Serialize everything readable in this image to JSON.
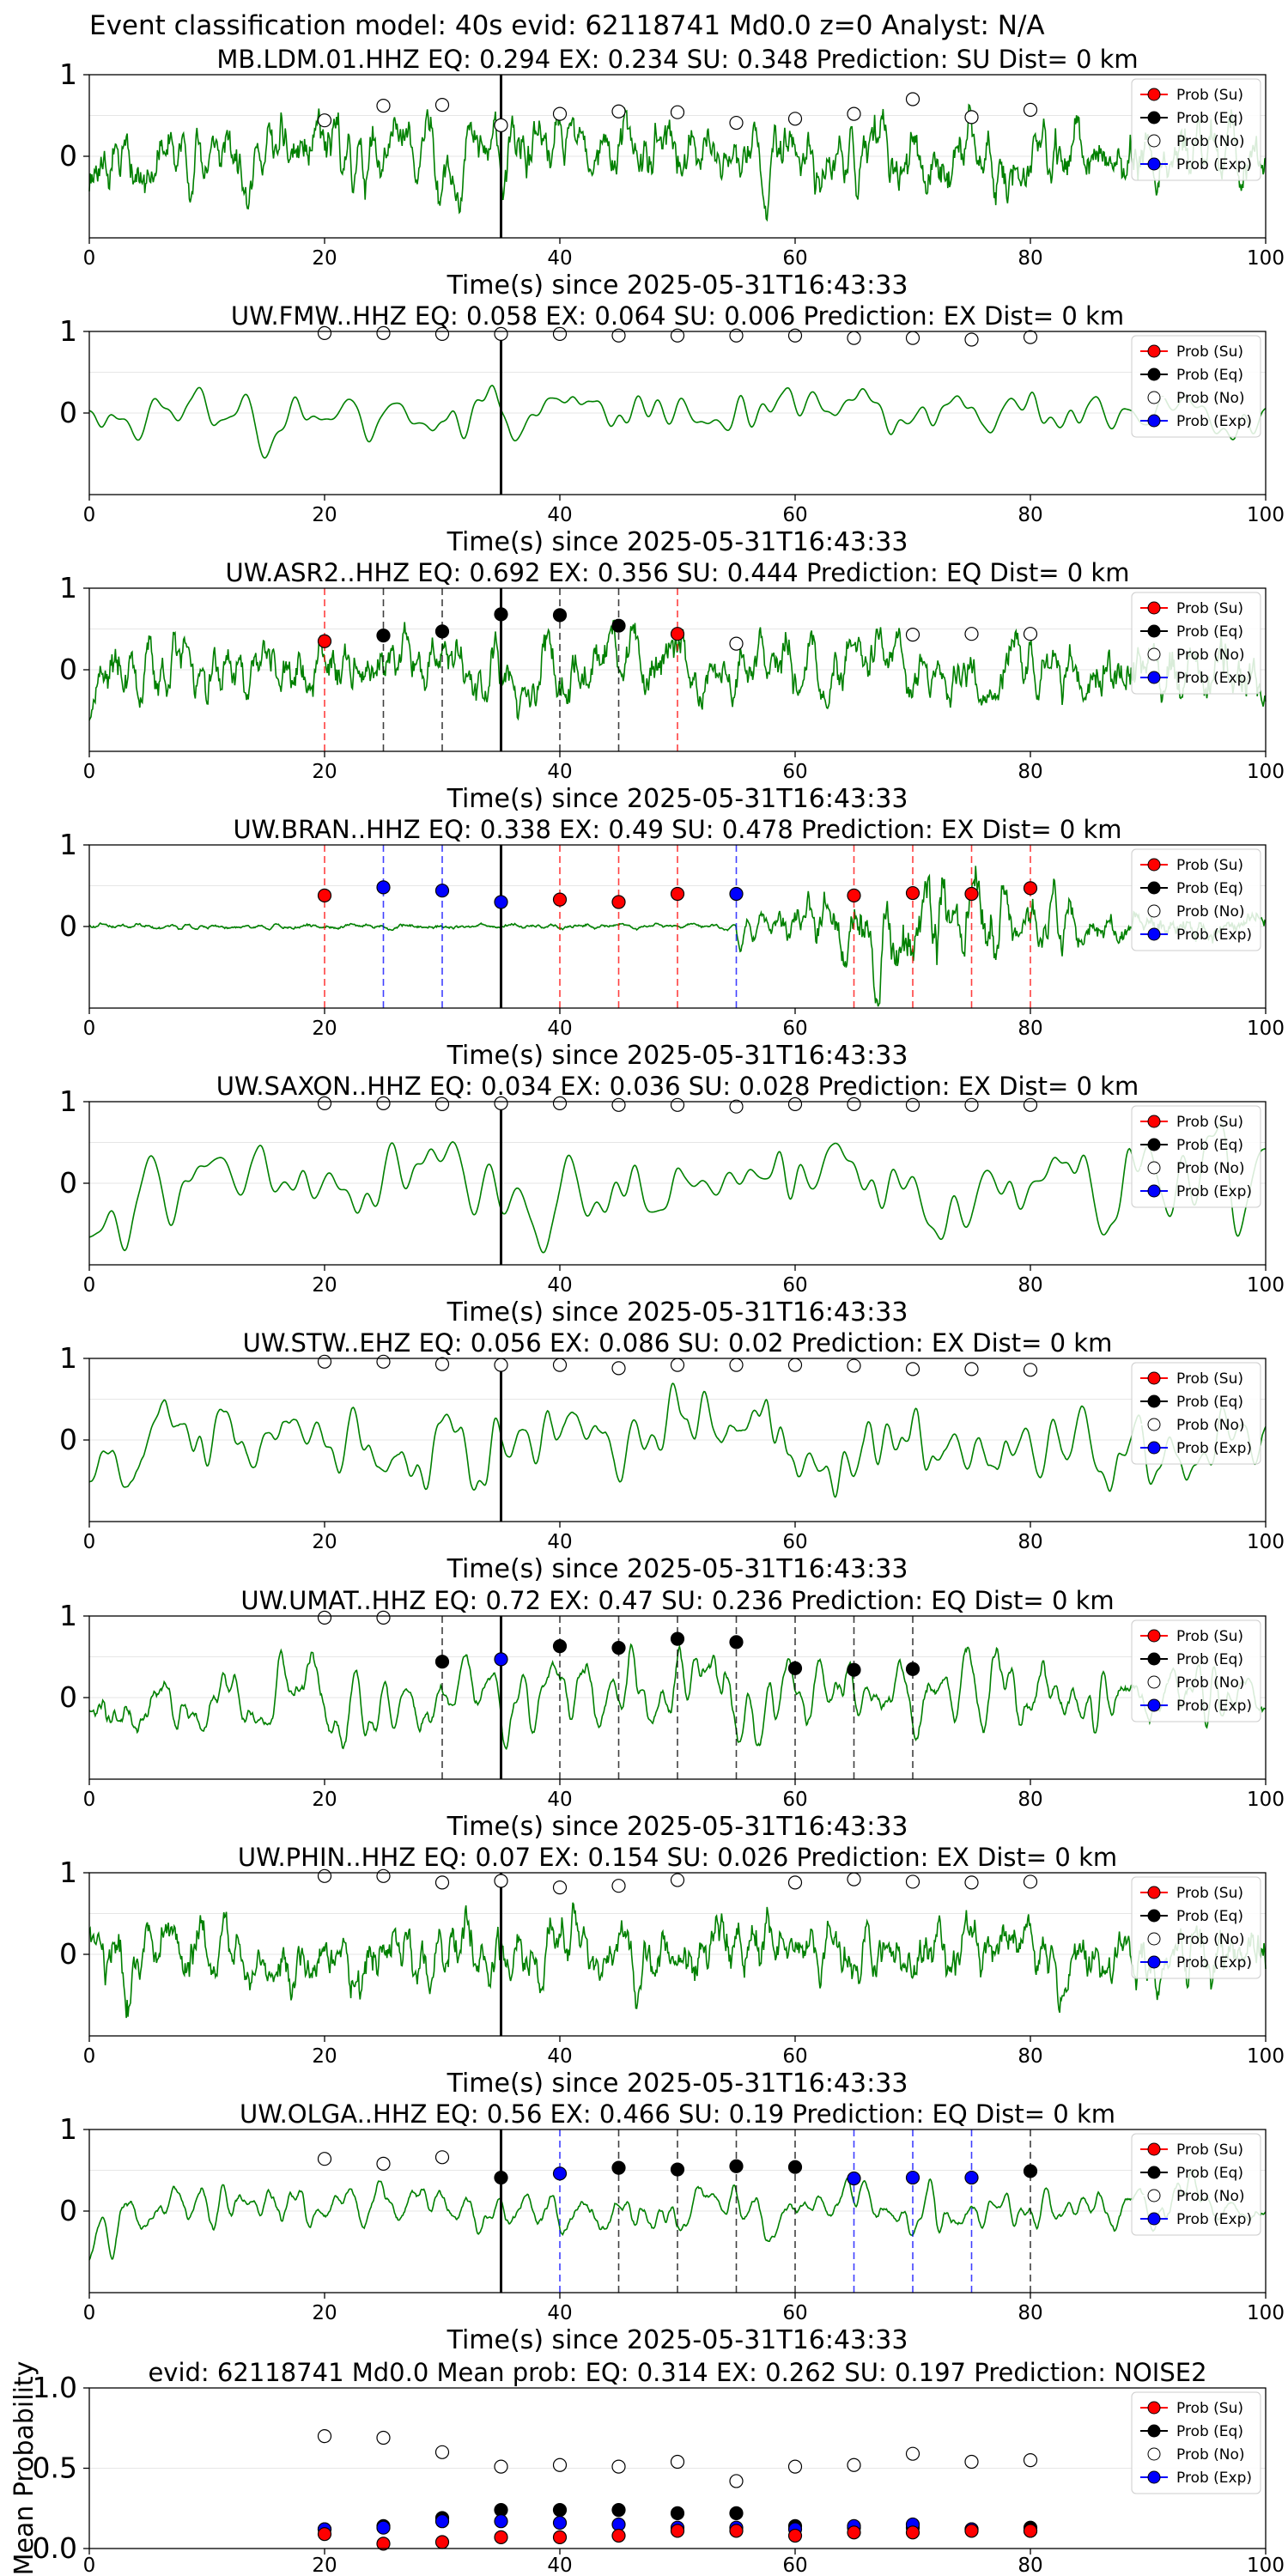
{
  "figure": {
    "suptitle": "Event classification model: 40s evid: 62118741 Md0.0 z=0 Analyst: N/A"
  },
  "colors": {
    "waveform": "#008000",
    "su": "#ff0000",
    "eq": "#000000",
    "no": "#ffffff",
    "exp": "#0000ff",
    "origin_line": "#000000"
  },
  "legend_labels": [
    "Prob (Su)",
    "Prob (Eq)",
    "Prob (No)",
    "Prob (Exp)"
  ],
  "chart_data": [
    {
      "type": "line",
      "title": "MB.LDM.01.HHZ   EQ: 0.294  EX: 0.234  SU: 0.348   Prediction: SU    Dist= 0 km",
      "xlabel": "Time(s) since 2025-05-31T16:43:33",
      "xlim": [
        0,
        100
      ],
      "ylim": [
        -1,
        1
      ],
      "xticks": [
        "0",
        "20",
        "40",
        "60",
        "80",
        "100"
      ],
      "yticks": [
        "1",
        "0"
      ],
      "origin_line_x": 35,
      "waveform": {
        "amplitude": 0.78,
        "smooth": 1,
        "seed": 11
      },
      "legend_position": "top-right",
      "points": [
        {
          "x": 20,
          "y": 0.44,
          "cls": "no"
        },
        {
          "x": 25,
          "y": 0.62,
          "cls": "no"
        },
        {
          "x": 30,
          "y": 0.63,
          "cls": "no"
        },
        {
          "x": 35,
          "y": 0.38,
          "cls": "no"
        },
        {
          "x": 40,
          "y": 0.52,
          "cls": "no"
        },
        {
          "x": 45,
          "y": 0.55,
          "cls": "no"
        },
        {
          "x": 50,
          "y": 0.54,
          "cls": "no"
        },
        {
          "x": 55,
          "y": 0.41,
          "cls": "no"
        },
        {
          "x": 60,
          "y": 0.46,
          "cls": "no"
        },
        {
          "x": 65,
          "y": 0.52,
          "cls": "no"
        },
        {
          "x": 70,
          "y": 0.7,
          "cls": "no"
        },
        {
          "x": 75,
          "y": 0.48,
          "cls": "no"
        },
        {
          "x": 80,
          "y": 0.57,
          "cls": "no"
        }
      ],
      "markers": []
    },
    {
      "type": "line",
      "title": "UW.FMW..HHZ   EQ: 0.058  EX: 0.064  SU: 0.006   Prediction: EX    Dist= 0 km",
      "xlabel": "Time(s) since 2025-05-31T16:43:33",
      "xlim": [
        0,
        100
      ],
      "ylim": [
        -1,
        1
      ],
      "xticks": [
        "0",
        "20",
        "40",
        "60",
        "80",
        "100"
      ],
      "yticks": [
        "1",
        "0"
      ],
      "origin_line_x": 35,
      "waveform": {
        "amplitude": 0.55,
        "smooth": 5,
        "seed": 23
      },
      "legend_position": "top-right",
      "points": [
        {
          "x": 20,
          "y": 0.98,
          "cls": "no"
        },
        {
          "x": 25,
          "y": 0.98,
          "cls": "no"
        },
        {
          "x": 30,
          "y": 0.97,
          "cls": "no"
        },
        {
          "x": 35,
          "y": 0.97,
          "cls": "no"
        },
        {
          "x": 40,
          "y": 0.97,
          "cls": "no"
        },
        {
          "x": 45,
          "y": 0.95,
          "cls": "no"
        },
        {
          "x": 50,
          "y": 0.95,
          "cls": "no"
        },
        {
          "x": 55,
          "y": 0.95,
          "cls": "no"
        },
        {
          "x": 60,
          "y": 0.95,
          "cls": "no"
        },
        {
          "x": 65,
          "y": 0.92,
          "cls": "no"
        },
        {
          "x": 70,
          "y": 0.92,
          "cls": "no"
        },
        {
          "x": 75,
          "y": 0.9,
          "cls": "no"
        },
        {
          "x": 80,
          "y": 0.93,
          "cls": "no"
        }
      ],
      "markers": []
    },
    {
      "type": "line",
      "title": "UW.ASR2..HHZ   EQ: 0.692  EX: 0.356  SU: 0.444   Prediction: EQ    Dist= 0 km",
      "xlabel": "Time(s) since 2025-05-31T16:43:33",
      "xlim": [
        0,
        100
      ],
      "ylim": [
        -1,
        1
      ],
      "xticks": [
        "0",
        "20",
        "40",
        "60",
        "80",
        "100"
      ],
      "yticks": [
        "1",
        "0"
      ],
      "origin_line_x": 35,
      "waveform": {
        "amplitude": 0.62,
        "smooth": 1,
        "seed": 37
      },
      "legend_position": "top-right",
      "points": [
        {
          "x": 20,
          "y": 0.35,
          "cls": "su"
        },
        {
          "x": 25,
          "y": 0.42,
          "cls": "eq"
        },
        {
          "x": 30,
          "y": 0.47,
          "cls": "eq"
        },
        {
          "x": 35,
          "y": 0.68,
          "cls": "eq"
        },
        {
          "x": 40,
          "y": 0.67,
          "cls": "eq"
        },
        {
          "x": 45,
          "y": 0.54,
          "cls": "eq"
        },
        {
          "x": 50,
          "y": 0.44,
          "cls": "su"
        },
        {
          "x": 55,
          "y": 0.32,
          "cls": "no"
        },
        {
          "x": 70,
          "y": 0.43,
          "cls": "no"
        },
        {
          "x": 75,
          "y": 0.44,
          "cls": "no"
        },
        {
          "x": 80,
          "y": 0.44,
          "cls": "no"
        }
      ],
      "markers": [
        {
          "x": 20,
          "cls": "su"
        },
        {
          "x": 25,
          "cls": "eq"
        },
        {
          "x": 30,
          "cls": "eq"
        },
        {
          "x": 40,
          "cls": "eq"
        },
        {
          "x": 45,
          "cls": "eq"
        },
        {
          "x": 50,
          "cls": "su"
        }
      ]
    },
    {
      "type": "line",
      "title": "UW.BRAN..HHZ   EQ: 0.338  EX: 0.49  SU: 0.478   Prediction: EX    Dist= 0 km",
      "xlabel": "Time(s) since 2025-05-31T16:43:33",
      "xlim": [
        0,
        100
      ],
      "ylim": [
        -1,
        1
      ],
      "xticks": [
        "0",
        "20",
        "40",
        "60",
        "80",
        "100"
      ],
      "yticks": [
        "1",
        "0"
      ],
      "origin_line_x": 35,
      "waveform": {
        "amplitude": 0.06,
        "smooth": 1,
        "seed": 41,
        "burst": true
      },
      "legend_position": "top-right",
      "points": [
        {
          "x": 20,
          "y": 0.38,
          "cls": "su"
        },
        {
          "x": 25,
          "y": 0.48,
          "cls": "exp"
        },
        {
          "x": 30,
          "y": 0.44,
          "cls": "exp"
        },
        {
          "x": 35,
          "y": 0.3,
          "cls": "exp"
        },
        {
          "x": 40,
          "y": 0.33,
          "cls": "su"
        },
        {
          "x": 45,
          "y": 0.3,
          "cls": "su"
        },
        {
          "x": 50,
          "y": 0.4,
          "cls": "su"
        },
        {
          "x": 55,
          "y": 0.4,
          "cls": "exp"
        },
        {
          "x": 65,
          "y": 0.38,
          "cls": "su"
        },
        {
          "x": 70,
          "y": 0.41,
          "cls": "su"
        },
        {
          "x": 75,
          "y": 0.4,
          "cls": "su"
        },
        {
          "x": 80,
          "y": 0.47,
          "cls": "su"
        }
      ],
      "markers": [
        {
          "x": 20,
          "cls": "su"
        },
        {
          "x": 25,
          "cls": "exp"
        },
        {
          "x": 30,
          "cls": "exp"
        },
        {
          "x": 40,
          "cls": "su"
        },
        {
          "x": 45,
          "cls": "su"
        },
        {
          "x": 50,
          "cls": "su"
        },
        {
          "x": 55,
          "cls": "exp"
        },
        {
          "x": 65,
          "cls": "su"
        },
        {
          "x": 70,
          "cls": "su"
        },
        {
          "x": 75,
          "cls": "su"
        },
        {
          "x": 80,
          "cls": "su"
        }
      ]
    },
    {
      "type": "line",
      "title": "UW.SAXON..HHZ   EQ: 0.034  EX: 0.036  SU: 0.028   Prediction: EX    Dist= 0 km",
      "xlabel": "Time(s) since 2025-05-31T16:43:33",
      "xlim": [
        0,
        100
      ],
      "ylim": [
        -1,
        1
      ],
      "xticks": [
        "0",
        "20",
        "40",
        "60",
        "80",
        "100"
      ],
      "yticks": [
        "1",
        "0"
      ],
      "origin_line_x": 35,
      "waveform": {
        "amplitude": 0.85,
        "smooth": 6,
        "seed": 53
      },
      "legend_position": "top-right",
      "points": [
        {
          "x": 20,
          "y": 0.98,
          "cls": "no"
        },
        {
          "x": 25,
          "y": 0.98,
          "cls": "no"
        },
        {
          "x": 30,
          "y": 0.97,
          "cls": "no"
        },
        {
          "x": 35,
          "y": 0.98,
          "cls": "no"
        },
        {
          "x": 40,
          "y": 0.98,
          "cls": "no"
        },
        {
          "x": 45,
          "y": 0.96,
          "cls": "no"
        },
        {
          "x": 50,
          "y": 0.96,
          "cls": "no"
        },
        {
          "x": 55,
          "y": 0.94,
          "cls": "no"
        },
        {
          "x": 60,
          "y": 0.97,
          "cls": "no"
        },
        {
          "x": 65,
          "y": 0.97,
          "cls": "no"
        },
        {
          "x": 70,
          "y": 0.96,
          "cls": "no"
        },
        {
          "x": 75,
          "y": 0.96,
          "cls": "no"
        },
        {
          "x": 80,
          "y": 0.96,
          "cls": "no"
        }
      ],
      "markers": []
    },
    {
      "type": "line",
      "title": "UW.STW..EHZ   EQ: 0.056  EX: 0.086  SU: 0.02   Prediction: EX    Dist= 0 km",
      "xlabel": "Time(s) since 2025-05-31T16:43:33",
      "xlim": [
        0,
        100
      ],
      "ylim": [
        -1,
        1
      ],
      "xticks": [
        "0",
        "20",
        "40",
        "60",
        "80",
        "100"
      ],
      "yticks": [
        "1",
        "0"
      ],
      "origin_line_x": 35,
      "waveform": {
        "amplitude": 0.7,
        "smooth": 3,
        "seed": 67
      },
      "legend_position": "top-right",
      "points": [
        {
          "x": 20,
          "y": 0.96,
          "cls": "no"
        },
        {
          "x": 25,
          "y": 0.96,
          "cls": "no"
        },
        {
          "x": 30,
          "y": 0.93,
          "cls": "no"
        },
        {
          "x": 35,
          "y": 0.92,
          "cls": "no"
        },
        {
          "x": 40,
          "y": 0.92,
          "cls": "no"
        },
        {
          "x": 45,
          "y": 0.88,
          "cls": "no"
        },
        {
          "x": 50,
          "y": 0.92,
          "cls": "no"
        },
        {
          "x": 55,
          "y": 0.92,
          "cls": "no"
        },
        {
          "x": 60,
          "y": 0.92,
          "cls": "no"
        },
        {
          "x": 65,
          "y": 0.91,
          "cls": "no"
        },
        {
          "x": 70,
          "y": 0.87,
          "cls": "no"
        },
        {
          "x": 75,
          "y": 0.87,
          "cls": "no"
        },
        {
          "x": 80,
          "y": 0.86,
          "cls": "no"
        }
      ],
      "markers": []
    },
    {
      "type": "line",
      "title": "UW.UMAT..HHZ   EQ: 0.72  EX: 0.47  SU: 0.236   Prediction: EQ    Dist= 0 km",
      "xlabel": "Time(s) since 2025-05-31T16:43:33",
      "xlim": [
        0,
        100
      ],
      "ylim": [
        -1,
        1
      ],
      "xticks": [
        "0",
        "20",
        "40",
        "60",
        "80",
        "100"
      ],
      "yticks": [
        "1",
        "0"
      ],
      "origin_line_x": 35,
      "waveform": {
        "amplitude": 0.65,
        "smooth": 2,
        "seed": 79
      },
      "legend_position": "top-right",
      "points": [
        {
          "x": 20,
          "y": 0.98,
          "cls": "no"
        },
        {
          "x": 25,
          "y": 0.98,
          "cls": "no"
        },
        {
          "x": 30,
          "y": 0.44,
          "cls": "eq"
        },
        {
          "x": 35,
          "y": 0.47,
          "cls": "exp"
        },
        {
          "x": 40,
          "y": 0.63,
          "cls": "eq"
        },
        {
          "x": 45,
          "y": 0.61,
          "cls": "eq"
        },
        {
          "x": 50,
          "y": 0.72,
          "cls": "eq"
        },
        {
          "x": 55,
          "y": 0.68,
          "cls": "eq"
        },
        {
          "x": 60,
          "y": 0.36,
          "cls": "eq"
        },
        {
          "x": 65,
          "y": 0.34,
          "cls": "eq"
        },
        {
          "x": 70,
          "y": 0.35,
          "cls": "eq"
        }
      ],
      "markers": [
        {
          "x": 30,
          "cls": "eq"
        },
        {
          "x": 40,
          "cls": "eq"
        },
        {
          "x": 45,
          "cls": "eq"
        },
        {
          "x": 50,
          "cls": "eq"
        },
        {
          "x": 55,
          "cls": "eq"
        },
        {
          "x": 60,
          "cls": "eq"
        },
        {
          "x": 65,
          "cls": "eq"
        },
        {
          "x": 70,
          "cls": "eq"
        }
      ]
    },
    {
      "type": "line",
      "title": "UW.PHIN..HHZ   EQ: 0.07  EX: 0.154  SU: 0.026   Prediction: EX    Dist= 0 km",
      "xlabel": "Time(s) since 2025-05-31T16:43:33",
      "xlim": [
        0,
        100
      ],
      "ylim": [
        -1,
        1
      ],
      "xticks": [
        "0",
        "20",
        "40",
        "60",
        "80",
        "100"
      ],
      "yticks": [
        "1",
        "0"
      ],
      "origin_line_x": 35,
      "waveform": {
        "amplitude": 0.78,
        "smooth": 1,
        "seed": 83
      },
      "legend_position": "top-right",
      "points": [
        {
          "x": 20,
          "y": 0.96,
          "cls": "no"
        },
        {
          "x": 25,
          "y": 0.96,
          "cls": "no"
        },
        {
          "x": 30,
          "y": 0.88,
          "cls": "no"
        },
        {
          "x": 35,
          "y": 0.9,
          "cls": "no"
        },
        {
          "x": 40,
          "y": 0.82,
          "cls": "no"
        },
        {
          "x": 45,
          "y": 0.84,
          "cls": "no"
        },
        {
          "x": 50,
          "y": 0.91,
          "cls": "no"
        },
        {
          "x": 60,
          "y": 0.88,
          "cls": "no"
        },
        {
          "x": 65,
          "y": 0.92,
          "cls": "no"
        },
        {
          "x": 70,
          "y": 0.89,
          "cls": "no"
        },
        {
          "x": 75,
          "y": 0.88,
          "cls": "no"
        },
        {
          "x": 80,
          "y": 0.89,
          "cls": "no"
        }
      ],
      "markers": []
    },
    {
      "type": "line",
      "title": "UW.OLGA..HHZ   EQ: 0.56  EX: 0.466  SU: 0.19   Prediction: EQ    Dist= 0 km",
      "xlabel": "Time(s) since 2025-05-31T16:43:33",
      "xlim": [
        0,
        100
      ],
      "ylim": [
        -1,
        1
      ],
      "xticks": [
        "0",
        "20",
        "40",
        "60",
        "80",
        "100"
      ],
      "yticks": [
        "1",
        "0"
      ],
      "origin_line_x": 35,
      "waveform": {
        "amplitude": 0.6,
        "smooth": 2,
        "seed": 97
      },
      "legend_position": "top-right",
      "points": [
        {
          "x": 20,
          "y": 0.64,
          "cls": "no"
        },
        {
          "x": 25,
          "y": 0.58,
          "cls": "no"
        },
        {
          "x": 30,
          "y": 0.66,
          "cls": "no"
        },
        {
          "x": 35,
          "y": 0.41,
          "cls": "eq"
        },
        {
          "x": 40,
          "y": 0.46,
          "cls": "exp"
        },
        {
          "x": 45,
          "y": 0.53,
          "cls": "eq"
        },
        {
          "x": 50,
          "y": 0.51,
          "cls": "eq"
        },
        {
          "x": 55,
          "y": 0.55,
          "cls": "eq"
        },
        {
          "x": 60,
          "y": 0.54,
          "cls": "eq"
        },
        {
          "x": 65,
          "y": 0.4,
          "cls": "exp"
        },
        {
          "x": 70,
          "y": 0.41,
          "cls": "exp"
        },
        {
          "x": 75,
          "y": 0.41,
          "cls": "exp"
        },
        {
          "x": 80,
          "y": 0.49,
          "cls": "eq"
        }
      ],
      "markers": [
        {
          "x": 40,
          "cls": "exp"
        },
        {
          "x": 45,
          "cls": "eq"
        },
        {
          "x": 50,
          "cls": "eq"
        },
        {
          "x": 55,
          "cls": "eq"
        },
        {
          "x": 60,
          "cls": "eq"
        },
        {
          "x": 65,
          "cls": "exp"
        },
        {
          "x": 70,
          "cls": "exp"
        },
        {
          "x": 75,
          "cls": "exp"
        },
        {
          "x": 80,
          "cls": "eq"
        }
      ]
    },
    {
      "type": "scatter",
      "title": "evid: 62118741  Md0.0   Mean prob:    EQ: 0.314  EX: 0.262  SU: 0.197   Prediction: NOISE2",
      "ylabel": "Mean Probability",
      "xlim": [
        0,
        100
      ],
      "ylim": [
        0,
        1
      ],
      "xticks": [
        "0",
        "20",
        "40",
        "60",
        "80",
        "100"
      ],
      "yticks": [
        "0.0",
        "0.5",
        "1.0"
      ],
      "ytick_values": [
        0,
        0.5,
        1
      ],
      "legend_position": "top-right",
      "x": [
        20,
        25,
        30,
        35,
        40,
        45,
        50,
        55,
        60,
        65,
        70,
        75,
        80
      ],
      "series": [
        {
          "name": "Prob (No)",
          "cls": "no",
          "values": [
            0.7,
            0.69,
            0.6,
            0.51,
            0.52,
            0.51,
            0.54,
            0.42,
            0.51,
            0.52,
            0.59,
            0.54,
            0.55
          ]
        },
        {
          "name": "Prob (Eq)",
          "cls": "eq",
          "values": [
            0.12,
            0.14,
            0.19,
            0.24,
            0.24,
            0.24,
            0.22,
            0.22,
            0.14,
            0.13,
            0.13,
            0.12,
            0.13
          ]
        },
        {
          "name": "Prob (Exp)",
          "cls": "exp",
          "values": [
            0.12,
            0.13,
            0.17,
            0.17,
            0.16,
            0.15,
            0.13,
            0.13,
            0.12,
            0.14,
            0.15,
            0.12,
            0.11
          ]
        },
        {
          "name": "Prob (Su)",
          "cls": "su",
          "values": [
            0.09,
            0.03,
            0.04,
            0.07,
            0.07,
            0.08,
            0.11,
            0.11,
            0.08,
            0.1,
            0.1,
            0.11,
            0.11
          ]
        }
      ]
    }
  ]
}
